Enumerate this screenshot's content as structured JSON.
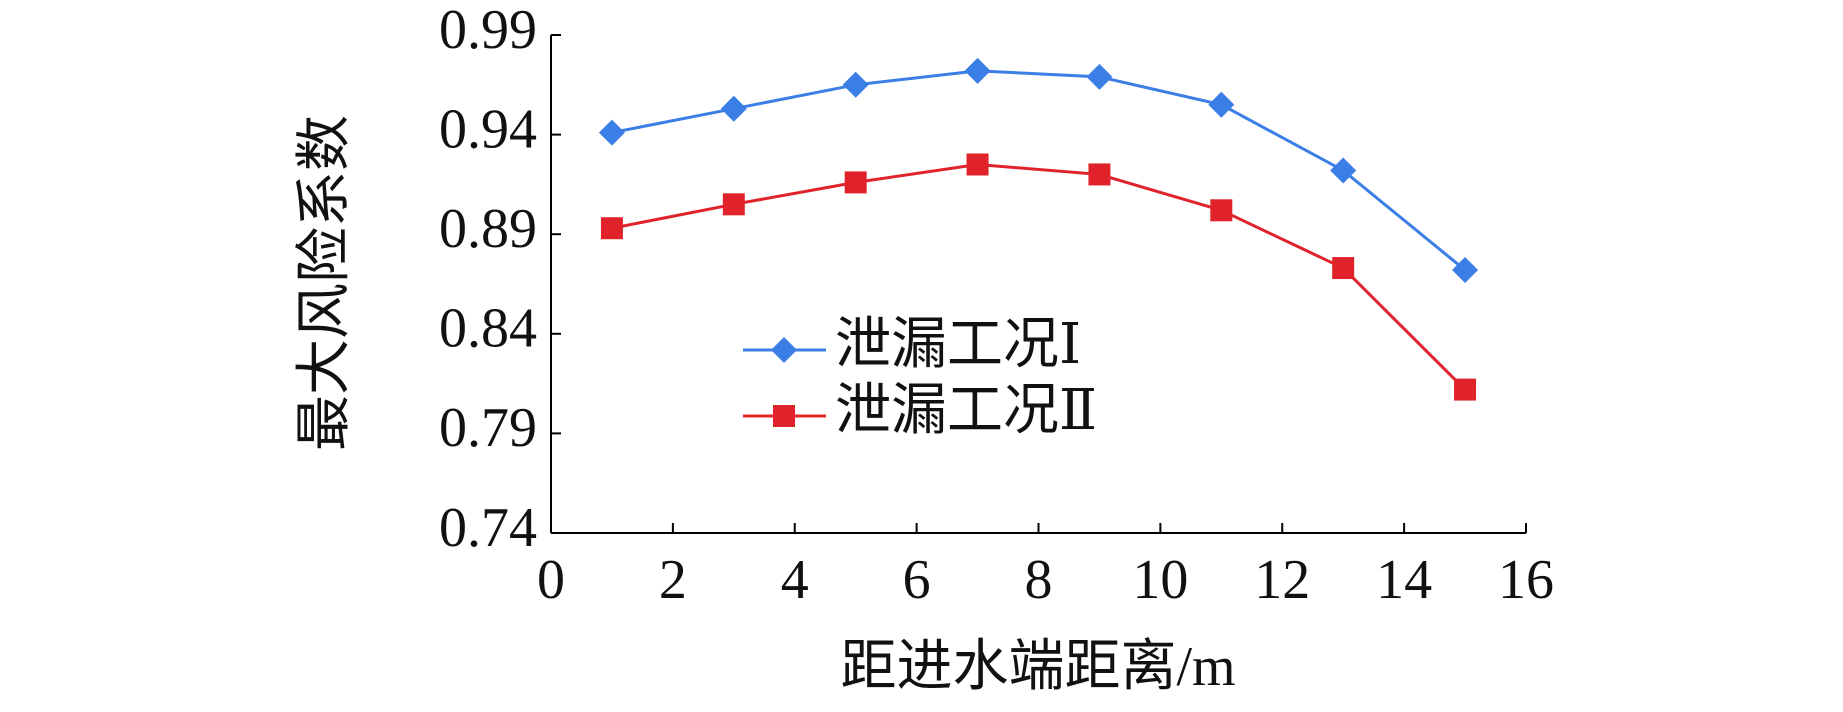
{
  "chart_data": {
    "type": "line",
    "xlabel": "距进水端距离/m",
    "ylabel": "最大风险系数",
    "x": [
      1,
      3,
      5,
      7,
      9,
      11,
      13,
      15
    ],
    "series": [
      {
        "name": "泄漏工况Ⅰ",
        "color": "#3a7ee6",
        "marker": "diamond",
        "values": [
          0.941,
          0.953,
          0.965,
          0.972,
          0.969,
          0.955,
          0.922,
          0.872
        ]
      },
      {
        "name": "泄漏工况Ⅱ",
        "color": "#e0232b",
        "marker": "square",
        "values": [
          0.893,
          0.905,
          0.916,
          0.925,
          0.92,
          0.902,
          0.873,
          0.812
        ]
      }
    ],
    "xlim": [
      0,
      16
    ],
    "xticks": [
      0,
      2,
      4,
      6,
      8,
      10,
      12,
      14,
      16
    ],
    "ylim": [
      0.74,
      0.99
    ],
    "yticks": [
      0.74,
      0.79,
      0.84,
      0.89,
      0.94,
      0.99
    ],
    "grid": false
  }
}
